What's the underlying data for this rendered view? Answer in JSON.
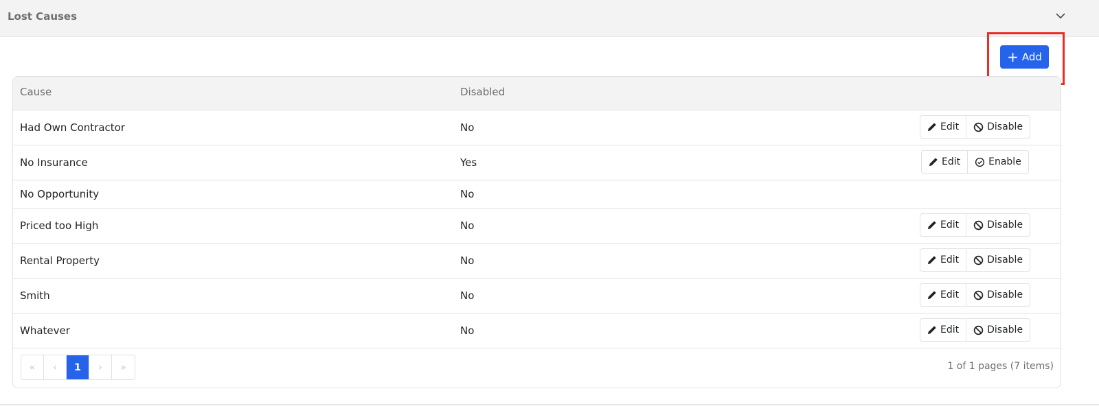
{
  "section": {
    "title": "Lost Causes"
  },
  "toolbar": {
    "add_label": "Add"
  },
  "table": {
    "columns": [
      "Cause",
      "Disabled"
    ],
    "rows": [
      {
        "cause": "Had Own Contractor",
        "disabled": "No",
        "actions": [
          "Edit",
          "Disable"
        ]
      },
      {
        "cause": "No Insurance",
        "disabled": "Yes",
        "actions": [
          "Edit",
          "Enable"
        ]
      },
      {
        "cause": "No Opportunity",
        "disabled": "No",
        "actions": []
      },
      {
        "cause": "Priced too High",
        "disabled": "No",
        "actions": [
          "Edit",
          "Disable"
        ]
      },
      {
        "cause": "Rental Property",
        "disabled": "No",
        "actions": [
          "Edit",
          "Disable"
        ]
      },
      {
        "cause": "Smith",
        "disabled": "No",
        "actions": [
          "Edit",
          "Disable"
        ]
      },
      {
        "cause": "Whatever",
        "disabled": "No",
        "actions": [
          "Edit",
          "Disable"
        ]
      }
    ]
  },
  "pagination": {
    "first": "«",
    "prev": "‹",
    "current": "1",
    "next": "›",
    "last": "»",
    "info": "1 of 1 pages (7 items)"
  },
  "colors": {
    "accent": "#2563eb",
    "highlight": "#ee2a24"
  }
}
